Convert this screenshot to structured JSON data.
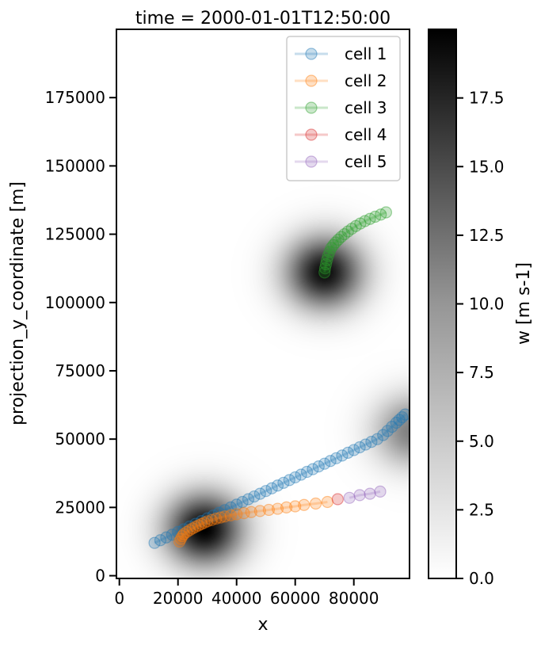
{
  "chart_data": {
    "type": "scatter",
    "title": "time = 2000-01-01T12:50:00",
    "xlabel": "x",
    "ylabel": "projection_y_coordinate [m]",
    "xlim": [
      -1000,
      99000
    ],
    "ylim": [
      -1000,
      200000
    ],
    "x_ticks": [
      0,
      20000,
      40000,
      60000,
      80000
    ],
    "x_tick_labels": [
      "0",
      "20000",
      "40000",
      "60000",
      "80000"
    ],
    "y_ticks": [
      0,
      25000,
      50000,
      75000,
      100000,
      125000,
      150000,
      175000
    ],
    "y_tick_labels": [
      "0",
      "25000",
      "50000",
      "75000",
      "100000",
      "125000",
      "150000",
      "175000"
    ],
    "grid": false,
    "legend_position": "top-right",
    "background_field": {
      "name": "w",
      "colormap": "Greys",
      "vmin": 0.0,
      "vmax": 20.0,
      "blobs": [
        {
          "x": 29000,
          "y": 17000,
          "peak": 20.0,
          "sigma": 9000
        },
        {
          "x": 70000,
          "y": 111000,
          "peak": 19.0,
          "sigma": 9000
        },
        {
          "x": 100000,
          "y": 53000,
          "peak": 10.0,
          "sigma": 9000
        }
      ]
    },
    "colorbar": {
      "label": "w [m s-1]",
      "vmin": 0.0,
      "vmax": 20.0,
      "ticks": [
        0.0,
        2.5,
        5.0,
        7.5,
        10.0,
        12.5,
        15.0,
        17.5
      ],
      "tick_labels": [
        "0.0",
        "2.5",
        "5.0",
        "7.5",
        "10.0",
        "12.5",
        "15.0",
        "17.5"
      ]
    },
    "series": [
      {
        "name": "cell 1",
        "color": "#1f77b4",
        "x": [
          12000,
          14000,
          16000,
          18000,
          20000,
          22000,
          24000,
          26000,
          28000,
          30000,
          32000,
          34000,
          36000,
          38000,
          40000,
          42000,
          44000,
          46000,
          48000,
          50000,
          52000,
          54000,
          56000,
          58000,
          60000,
          62000,
          64000,
          66000,
          68000,
          70000,
          72000,
          74000,
          76000,
          78000,
          80000,
          82000,
          84000,
          86000,
          88000,
          90000,
          91500,
          93000,
          94500,
          95500,
          96500,
          97500
        ],
        "y": [
          12000,
          13000,
          14000,
          15000,
          16000,
          17000,
          18000,
          19000,
          20000,
          21000,
          22000,
          23000,
          24000,
          25000,
          26000,
          27000,
          28000,
          29000,
          30000,
          31000,
          32000,
          33000,
          34000,
          35000,
          36000,
          37000,
          38000,
          39000,
          40000,
          41000,
          42000,
          43000,
          44000,
          45000,
          46000,
          47000,
          48000,
          49000,
          50000,
          51500,
          53000,
          54500,
          56000,
          57000,
          58000,
          59000
        ]
      },
      {
        "name": "cell 2",
        "color": "#ff7f0e",
        "x": [
          20500,
          21000,
          21500,
          22000,
          23000,
          24000,
          25000,
          26000,
          27000,
          28000,
          29000,
          30000,
          31500,
          33000,
          34500,
          36000,
          38000,
          40000,
          42500,
          45000,
          48000,
          51000,
          54000,
          57000,
          60000,
          63000,
          67000,
          71000
        ],
        "y": [
          12500,
          13500,
          14500,
          15200,
          16000,
          16700,
          17300,
          17900,
          18400,
          18900,
          19400,
          19900,
          20400,
          20900,
          21300,
          21700,
          22100,
          22500,
          22900,
          23300,
          23700,
          24100,
          24500,
          25000,
          25400,
          25900,
          26400,
          27000
        ]
      },
      {
        "name": "cell 3",
        "color": "#2ca02c",
        "x": [
          70000,
          70200,
          70500,
          70800,
          71200,
          71700,
          72300,
          73000,
          73800,
          74700,
          75700,
          76800,
          78000,
          79300,
          80700,
          82200,
          83800,
          85500,
          87300,
          89200,
          91000
        ],
        "y": [
          111000,
          112500,
          114000,
          115500,
          117000,
          118500,
          120000,
          121000,
          122000,
          123000,
          124000,
          125000,
          126000,
          127000,
          128000,
          128900,
          129800,
          130600,
          131400,
          132200,
          133000
        ]
      },
      {
        "name": "cell 4",
        "color": "#d62728",
        "x": [
          74500
        ],
        "y": [
          28000
        ]
      },
      {
        "name": "cell 5",
        "color": "#9467bd",
        "x": [
          78500,
          82000,
          85500,
          89000
        ],
        "y": [
          28500,
          29500,
          30000,
          30800
        ]
      }
    ]
  }
}
